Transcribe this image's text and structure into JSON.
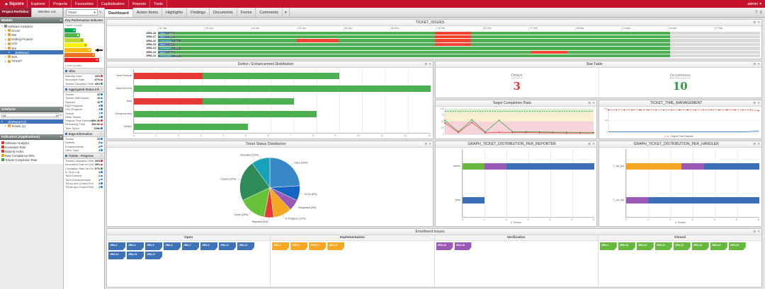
{
  "ui": {
    "icons": {
      "settings": "⚙",
      "close": "✕",
      "help": "?",
      "menu": "≡",
      "edit": "✎",
      "search": "⌕",
      "info": "ⓘ",
      "dropdown": "▾",
      "refresh": "⟳"
    }
  },
  "navbar": {
    "brand": "Squore",
    "items": [
      "Explorer",
      "Projects",
      "Favourites",
      "Capitalisation",
      "Reports",
      "Tools"
    ],
    "user": "admin"
  },
  "toolbar": {
    "left_tabs": [
      "Project Portfolios",
      "Member List"
    ],
    "view_selector": "Trend",
    "main_tabs": [
      "Dashboard",
      "Action Items",
      "Highlights",
      "Findings",
      "Documents",
      "Forms",
      "Comments"
    ]
  },
  "sidebar": {
    "models": {
      "title": "Models",
      "items": [
        {
          "label": "Software Analytics",
          "depth": 0,
          "icon": "root",
          "expanded": true
        },
        {
          "label": "Scrum",
          "depth": 1,
          "icon": "folder"
        },
        {
          "label": "SW",
          "depth": 1,
          "icon": "folder"
        },
        {
          "label": "Getting Projects",
          "depth": 1,
          "icon": "folder"
        },
        {
          "label": "UAV",
          "depth": 1,
          "icon": "folder"
        },
        {
          "label": "Jira",
          "depth": 1,
          "icon": "folder",
          "expanded": true
        },
        {
          "label": "JiraReport",
          "depth": 2,
          "icon": "chart",
          "selected": true
        },
        {
          "label": "JKN",
          "depth": 1,
          "icon": "folder"
        },
        {
          "label": "TICKET",
          "depth": 1,
          "icon": "folder"
        }
      ]
    },
    "artefacts": {
      "title": "Artefacts",
      "filter": "All",
      "items": [
        {
          "label": "JiraReport (1)",
          "depth": 0,
          "icon": "chart",
          "selected": true
        },
        {
          "label": "Tickets (1)",
          "depth": 1,
          "icon": "folder"
        }
      ]
    },
    "indicators": {
      "title": "Indicators (Applications)",
      "items": [
        {
          "label": "Software Analytics",
          "color": "#e03131"
        },
        {
          "label": "Innovation Rate",
          "color": "#e03131"
        },
        {
          "label": "Maturity Index",
          "color": "#e03131"
        },
        {
          "label": "Rate Compliance 95%",
          "color": "#f59f00"
        },
        {
          "label": "Tickets Completion Rate",
          "color": "#2f9e44"
        }
      ]
    }
  },
  "kpi": {
    "title": "Key Performance Indicator",
    "higher": "Higher Quality",
    "lower": "Lower Quality",
    "current_level": "E",
    "levels": [
      {
        "letter": "A",
        "color": "#00a651"
      },
      {
        "letter": "B",
        "color": "#50b848"
      },
      {
        "letter": "C",
        "color": "#bfd730"
      },
      {
        "letter": "D",
        "color": "#fff200"
      },
      {
        "letter": "E",
        "color": "#fdb913"
      },
      {
        "letter": "F",
        "color": "#f37021"
      },
      {
        "letter": "G",
        "color": "#ed1c24"
      }
    ],
    "sections": [
      {
        "title": "Infos",
        "rows": [
          {
            "label": "Maturity Index",
            "value": "43%",
            "dot": "#e03131"
          },
          {
            "label": "Innovation Rate",
            "value": "67%",
            "dot": "#e03131"
          },
          {
            "label": "Tickets Circulation Rate",
            "value": "43%",
            "dot": "#2f9e44"
          }
        ]
      },
      {
        "title": "Aggregated Status Information",
        "rows": [
          {
            "label": "Tickets",
            "value": "20",
            "dot": "#1c7ed6"
          },
          {
            "label": "Tickets With Issues",
            "value": "10",
            "dot": "#1c7ed6"
          },
          {
            "label": "Opened",
            "value": "10",
            "dot": "#1c7ed6"
          },
          {
            "label": "R&D Progress",
            "value": "4",
            "dot": "#1c7ed6"
          },
          {
            "label": "V&V Progress",
            "value": "2",
            "dot": "#1c7ed6"
          },
          {
            "label": "Overall",
            "value": "7",
            "dot": "#1c7ed6"
          },
          {
            "label": "Other Status",
            "value": "2",
            "dot": "#1c7ed6"
          },
          {
            "label": "Original Time Estimate",
            "value": "89d 4h",
            "dot": "#e03131"
          },
          {
            "label": "Remaining Time",
            "value": "19d 6h",
            "dot": "#e03131"
          },
          {
            "label": "Time Spent",
            "value": "209h",
            "dot": "#1c7ed6"
          }
        ]
      },
      {
        "title": "Bugs Information",
        "rows": [
          {
            "label": "Tickets",
            "value": "20",
            "dot": "#1c7ed6"
          },
          {
            "label": "Defects",
            "value": "8",
            "dot": "#1c7ed6"
          },
          {
            "label": "Enhancements",
            "value": "8",
            "dot": "#1c7ed6"
          },
          {
            "label": "Other Type",
            "value": "4",
            "dot": "#1c7ed6"
          }
        ]
      },
      {
        "title": "Tickets - Progress",
        "rows": [
          {
            "label": "Tickets Circulation Rate",
            "value": "43%",
            "dot": "#e03131"
          },
          {
            "label": "Innovation Rate for Defects",
            "value": "29%",
            "dot": "#e03131"
          },
          {
            "label": "Circulation Rate for Enh.",
            "value": "67%",
            "dot": "#2f9e44"
          },
          {
            "label": "In ToDo List",
            "value": "4",
            "dot": "#1c7ed6"
          },
          {
            "label": "ToDo Defects",
            "value": "2",
            "dot": "#1c7ed6"
          },
          {
            "label": "ToDo Enhancements",
            "value": "2",
            "dot": "#1c7ed6"
          },
          {
            "label": "ToDos and Closed Enh.",
            "value": "2",
            "dot": "#1c7ed6"
          },
          {
            "label": "ToDos and Closed Defects",
            "value": "2",
            "dot": "#1c7ed6"
          }
        ]
      }
    ]
  },
  "chart_data": {
    "ticket_issues": {
      "type": "gantt",
      "title": "TICKET_ISSUES",
      "ticks": [
        "02 Jan",
        "09 Jan",
        "16 Jan",
        "23 Jan",
        "30 Jan",
        "06 Feb",
        "13 Feb",
        "20 Feb",
        "27 Feb",
        "06 Mar",
        "13 Mar",
        "20 Mar",
        "27 Mar"
      ],
      "rows": [
        {
          "label": "JIRA-18",
          "chips": [
            {
              "text": "Open",
              "color": "#3f73b8"
            },
            {
              "text": "v1.2",
              "color": "#5b6770"
            }
          ],
          "segments": [
            {
              "color": "#4caf50",
              "w": 46
            },
            {
              "color": "#f0442e",
              "w": 6
            },
            {
              "color": "#4caf50",
              "w": 33
            }
          ]
        },
        {
          "label": "JIRA-17",
          "chips": [
            {
              "text": "Open",
              "color": "#3f73b8"
            },
            {
              "text": "v1.2",
              "color": "#5b6770"
            }
          ],
          "segments": [
            {
              "color": "#4caf50",
              "w": 46
            },
            {
              "color": "#f0442e",
              "w": 6
            },
            {
              "color": "#4caf50",
              "w": 33
            }
          ]
        },
        {
          "label": "JIRA-16",
          "chips": [
            {
              "text": "In Progress",
              "color": "#2e8b9a"
            },
            {
              "text": "v1.1",
              "color": "#5b6770"
            }
          ],
          "segments": [
            {
              "color": "#4caf50",
              "w": 23
            },
            {
              "color": "#f0442e",
              "w": 7
            },
            {
              "color": "#4caf50",
              "w": 16
            },
            {
              "color": "#f0442e",
              "w": 6
            },
            {
              "color": "#4caf50",
              "w": 33
            }
          ]
        },
        {
          "label": "JIRA-15",
          "chips": [
            {
              "text": "Open",
              "color": "#3f73b8"
            },
            {
              "text": "v1.1",
              "color": "#5b6770"
            }
          ],
          "segments": [
            {
              "color": "#4caf50",
              "w": 46
            },
            {
              "color": "#f0442e",
              "w": 6
            },
            {
              "color": "#4caf50",
              "w": 33
            }
          ]
        },
        {
          "label": "JIRA-14",
          "chips": [
            {
              "text": "In Progress",
              "color": "#2e8b9a"
            },
            {
              "text": "v1.1",
              "color": "#5b6770"
            }
          ],
          "segments": [
            {
              "color": "#4caf50",
              "w": 85
            }
          ]
        },
        {
          "label": "JIRA-13",
          "chips": [
            {
              "text": "Open",
              "color": "#3f73b8"
            },
            {
              "text": "v1.0",
              "color": "#5b6770"
            }
          ],
          "segments": [
            {
              "color": "#4caf50",
              "w": 62
            },
            {
              "color": "#f0442e",
              "w": 6
            },
            {
              "color": "#4caf50",
              "w": 17
            }
          ]
        },
        {
          "label": "JIRA-12",
          "chips": [
            {
              "text": "In Progress",
              "color": "#2e8b9a"
            },
            {
              "text": "v1.0",
              "color": "#5b6770"
            }
          ],
          "segments": [
            {
              "color": "#4caf50",
              "w": 85
            }
          ]
        }
      ]
    },
    "distribution": {
      "type": "stackbar",
      "title": "Defect / Enhancement Distribution",
      "xmax": 13,
      "xticks": [
        0,
        1,
        2,
        3,
        4,
        5,
        6,
        7,
        8,
        9,
        10,
        11,
        12,
        13
      ],
      "xlabel": "",
      "rows": [
        {
          "label": "New Feature",
          "segments": [
            {
              "color": "#e53935",
              "v": 3
            },
            {
              "color": "#4caf50",
              "v": 6
            }
          ]
        },
        {
          "label": "Improvement",
          "segments": [
            {
              "color": "#4caf50",
              "v": 13
            }
          ]
        },
        {
          "label": "Task",
          "segments": [
            {
              "color": "#e53935",
              "v": 3
            },
            {
              "color": "#4caf50",
              "v": 4
            }
          ]
        },
        {
          "label": "Enhancement",
          "segments": [
            {
              "color": "#4caf50",
              "v": 8
            }
          ]
        },
        {
          "label": "Defect",
          "segments": [
            {
              "color": "#4caf50",
              "v": 5
            }
          ]
        }
      ]
    },
    "stat_table": {
      "type": "stat",
      "title": "Stat Table",
      "cells": [
        {
          "label": "Delays",
          "value": "3",
          "color": "#e53935"
        },
        {
          "label": "Occurrences",
          "value": "10",
          "color": "#2f9e44"
        }
      ]
    },
    "target_completion": {
      "type": "line",
      "title": "Target Completion Rate",
      "ylim": [
        0,
        100
      ],
      "yticks": [
        0,
        25,
        50,
        75,
        100
      ],
      "x_count": 12,
      "bands": [
        {
          "from": 0,
          "to": 50,
          "color": "#f7d4d9"
        },
        {
          "from": 50,
          "to": 85,
          "color": "#fbf0cf"
        },
        {
          "from": 85,
          "to": 100,
          "color": "#dcedd0"
        }
      ],
      "series": [
        {
          "name": "Target",
          "color": "#2f9e44",
          "dashed": true,
          "marker": false,
          "values": [
            90,
            90,
            90,
            90,
            90,
            90,
            90,
            90,
            90,
            90,
            90,
            90
          ]
        },
        {
          "name": "Completion Rate",
          "color": "#2f9e44",
          "marker": true,
          "values": [
            55,
            10,
            57,
            9,
            55,
            10,
            10,
            9,
            8,
            8,
            7,
            7
          ]
        },
        {
          "name": "Delay",
          "color": "#e53935",
          "marker": true,
          "values": [
            45,
            7,
            47,
            6,
            8,
            7,
            7,
            6,
            6,
            5,
            5,
            5
          ]
        }
      ]
    },
    "time_management": {
      "type": "line",
      "title": "TICKET_TIME_MANAGEMENT",
      "ylim": [
        0,
        100
      ],
      "yticks": [
        0,
        50,
        100
      ],
      "x_count": 20,
      "bands": [],
      "legend": [
        {
          "name": "Original Time Estimate",
          "color": "#e53935"
        }
      ],
      "series": [
        {
          "name": "Original Time Estimate",
          "color": "#e53935",
          "dashed": true,
          "marker": true,
          "values": [
            95,
            95,
            95,
            95,
            95,
            95,
            95,
            95,
            95,
            95,
            95,
            95,
            95,
            95,
            95,
            95,
            95,
            95,
            95,
            92
          ]
        },
        {
          "name": "Time Spent",
          "color": "#1c7ed6",
          "marker": false,
          "values": [
            2,
            2,
            2,
            2,
            2,
            2,
            2,
            2,
            2,
            2,
            2,
            2,
            2,
            2,
            2,
            2,
            2,
            2,
            3,
            5
          ]
        }
      ]
    },
    "status_distribution": {
      "type": "pie",
      "title": "Ticket Status Distribution",
      "slices": [
        {
          "label": "Open",
          "value": 24,
          "color": "#3a87c8"
        },
        {
          "label": "To Do",
          "value": 8,
          "color": "#1565c0"
        },
        {
          "label": "Reopened",
          "value": 6,
          "color": "#9b59b6"
        },
        {
          "label": "In Progress",
          "value": 10,
          "color": "#f5a623"
        },
        {
          "label": "Rejected",
          "value": 5,
          "color": "#e53935"
        },
        {
          "label": "Done",
          "value": 15,
          "color": "#67c23a"
        },
        {
          "label": "Closed",
          "value": 22,
          "color": "#2e8b57"
        },
        {
          "label": "Resolved",
          "value": 10,
          "color": "#17a2b8"
        }
      ]
    },
    "per_reporter": {
      "type": "stackbar",
      "title": "GRAPH_TICKET_DISTRIBUTION_PER_REPORTER",
      "xmax": 6,
      "xticks": [
        0,
        1,
        2,
        3,
        4,
        5,
        6
      ],
      "xlabel": "# Tickets",
      "rows": [
        {
          "label": "admin",
          "segments": [
            {
              "color": "#67b93e",
              "v": 1
            },
            {
              "color": "#9b59b6",
              "v": 1
            },
            {
              "color": "#3a6fb7",
              "v": 4
            }
          ]
        },
        {
          "label": "jdoe",
          "segments": [
            {
              "color": "#3a6fb7",
              "v": 1
            }
          ]
        }
      ]
    },
    "per_handler": {
      "type": "stackbar",
      "title": "GRAPH_TICKET_DISTRIBUTION_PER_HANDLER",
      "xmax": 6,
      "xticks": [
        0,
        1,
        2,
        3,
        4,
        5,
        6
      ],
      "xlabel": "# Tickets",
      "rows": [
        {
          "label": "T_ad_jira",
          "segments": [
            {
              "color": "#f5a623",
              "v": 2.5
            },
            {
              "color": "#9b59b6",
              "v": 1
            },
            {
              "color": "#3a6fb7",
              "v": 2.5
            }
          ]
        },
        {
          "label": "T_po_jira",
          "segments": [
            {
              "color": "#9b59b6",
              "v": 1
            },
            {
              "color": "#3a6fb7",
              "v": 5
            }
          ]
        }
      ]
    },
    "enrollment": {
      "type": "kanban",
      "title": "Enrollment Issues",
      "columns": [
        {
          "title": "Open",
          "color": "#3f73b8",
          "items": [
            "JIRA-2",
            "JIRA-3",
            "JIRA-5",
            "JIRA-6",
            "JIRA-7",
            "JIRA-9",
            "JIRA-11",
            "JIRA-12",
            "JIRA-14",
            "JIRA-15",
            "JIRA-17"
          ]
        },
        {
          "title": "Implementation",
          "color": "#f5a623",
          "items": [
            "JIRA-4",
            "JIRA-8",
            "JIRA-10",
            "JIRA-13"
          ]
        },
        {
          "title": "Verification",
          "color": "#9b59b6",
          "items": [
            "JIRA-16",
            "JIRA-18"
          ]
        },
        {
          "title": "Closed",
          "color": "#67b93e",
          "items": [
            "JIRA-1",
            "JIRA-19",
            "JIRA-20",
            "JIRA-21",
            "JIRA-22",
            "JIRA-23",
            "JIRA-24",
            "JIRA-25"
          ]
        }
      ]
    }
  }
}
